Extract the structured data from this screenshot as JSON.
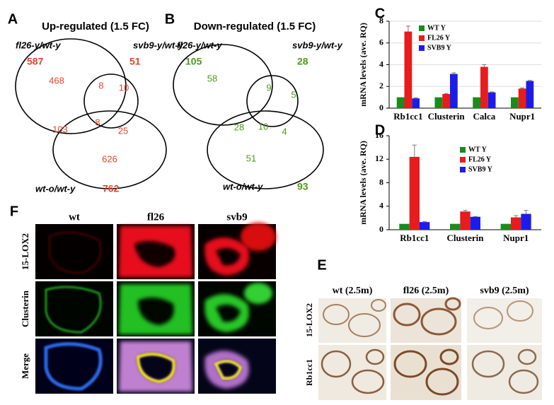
{
  "venn": [
    {
      "label": "A",
      "title": "Up-regulated (1.5 FC)",
      "color": "#e8432a",
      "sets": [
        {
          "name": "fl26-y/wt-y",
          "count": "587"
        },
        {
          "name": "svb9-y/wt-y",
          "count": "51"
        },
        {
          "name": "wt-o/wt-y",
          "count": "762"
        }
      ],
      "regions": [
        "468",
        "8",
        "10",
        "103",
        "8",
        "25",
        "626"
      ]
    },
    {
      "label": "B",
      "title": "Down-regulated (1.5 FC)",
      "color": "#4e9a1c",
      "sets": [
        {
          "name": "fl26-y/wt-y",
          "count": "105"
        },
        {
          "name": "svb9-y/wt-y",
          "count": "28"
        },
        {
          "name": "wt-o/wt-y",
          "count": "93"
        }
      ],
      "regions": [
        "58",
        "9",
        "5",
        "28",
        "10",
        "4",
        "51"
      ]
    }
  ],
  "chart_data": [
    {
      "type": "bar",
      "label": "C",
      "y_label": "mRNA levels (ave. RQ)",
      "categories": [
        "Rb1cc1",
        "Clusterin",
        "Calca",
        "Nupr1"
      ],
      "series": [
        {
          "name": "WT Y",
          "color": "#1a8c1a",
          "values": [
            1,
            1,
            1,
            1
          ]
        },
        {
          "name": "FL26 Y",
          "color": "#e81c1c",
          "values": [
            7.05,
            1.3,
            3.8,
            1.8
          ],
          "errors": [
            0.5,
            0.05,
            0.2,
            0.05
          ]
        },
        {
          "name": "SVB9 Y",
          "color": "#1c1ce8",
          "values": [
            0.9,
            3.15,
            1.45,
            2.5
          ],
          "errors": [
            0.05,
            0.1,
            0.05,
            0.05
          ]
        }
      ],
      "ylim": [
        0,
        8
      ],
      "yticks": [
        0,
        2,
        4,
        6,
        8
      ],
      "grid": true
    },
    {
      "type": "bar",
      "label": "D",
      "y_label": "mRNA levels (ave. RQ)",
      "categories": [
        "Rb1cc1",
        "Clusterin",
        "Nupr1"
      ],
      "series": [
        {
          "name": "WT Y",
          "color": "#1a8c1a",
          "values": [
            1,
            1,
            1
          ]
        },
        {
          "name": "FL26 Y",
          "color": "#e81c1c",
          "values": [
            12.4,
            3.1,
            2.1
          ],
          "errors": [
            2.0,
            0.2,
            0.3
          ]
        },
        {
          "name": "SVB9 Y",
          "color": "#1c1ce8",
          "values": [
            1.3,
            2.2,
            2.7
          ],
          "errors": [
            0.1,
            0.05,
            0.6
          ]
        }
      ],
      "ylim": [
        0,
        16
      ],
      "yticks": [
        0,
        4,
        8,
        12,
        16
      ],
      "grid": false
    }
  ],
  "panel_f": {
    "label": "F",
    "columns": [
      "wt",
      "fl26",
      "svb9"
    ],
    "rows": [
      "15-LOX2",
      "Clusterin",
      "Merge"
    ]
  },
  "panel_e": {
    "label": "E",
    "columns": [
      "wt (2.5m)",
      "fl26 (2.5m)",
      "svb9 (2.5m)"
    ],
    "rows": [
      "15-LOX2",
      "Rb1cc1"
    ]
  }
}
